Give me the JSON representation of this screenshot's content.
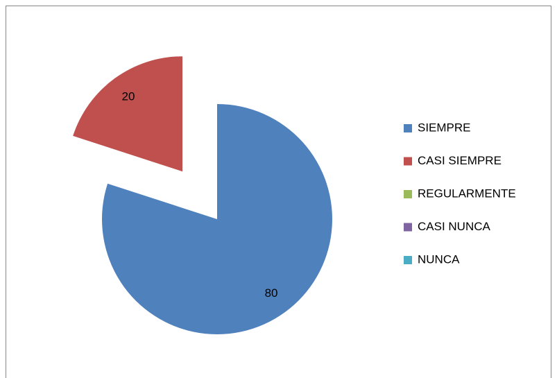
{
  "chart_data": {
    "type": "pie",
    "categories": [
      "SIEMPRE",
      "CASI SIEMPRE",
      "REGULARMENTE",
      "CASI NUNCA",
      "NUNCA"
    ],
    "values": [
      80,
      20,
      0,
      0,
      0
    ],
    "colors": [
      "#4f81bd",
      "#c0504d",
      "#9bbb59",
      "#8064a2",
      "#4bacc6"
    ],
    "exploded": [
      false,
      true,
      false,
      false,
      false
    ],
    "legend": "right"
  }
}
